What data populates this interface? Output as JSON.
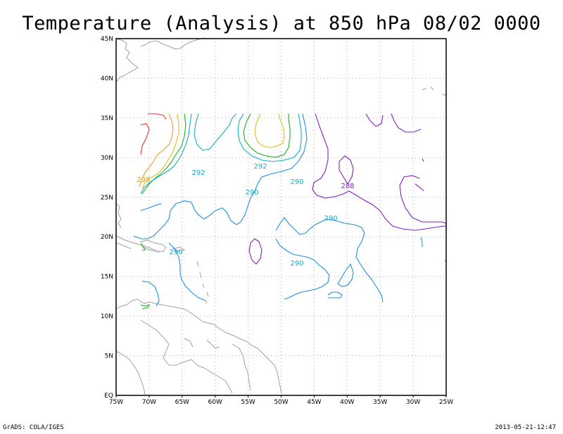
{
  "title": "Temperature (Analysis) at 850 hPa 08/02 0000",
  "footer": {
    "left": "GrADS: COLA/IGES",
    "right": "2013-05-21-12:47"
  },
  "map": {
    "lon_range": [
      -75,
      -25
    ],
    "lat_range": [
      0,
      45
    ],
    "x_ticks": [
      "75W",
      "70W",
      "65W",
      "60W",
      "55W",
      "50W",
      "45W",
      "40W",
      "35W",
      "30W",
      "25W"
    ],
    "y_ticks": [
      "EQ",
      "5N",
      "10N",
      "15N",
      "20N",
      "25N",
      "30N",
      "35N",
      "40N",
      "45N"
    ],
    "grid": "dotted",
    "contour_labels": [
      {
        "text": "298",
        "color": "#d8a020"
      },
      {
        "text": "292",
        "color": "#10b0c8"
      },
      {
        "text": "292",
        "color": "#10b0c8"
      },
      {
        "text": "290",
        "color": "#10b0c8"
      },
      {
        "text": "290",
        "color": "#10b0c8"
      },
      {
        "text": "288",
        "color": "#8020c0"
      },
      {
        "text": "290",
        "color": "#10b0c8"
      },
      {
        "text": "290",
        "color": "#10b0c8"
      },
      {
        "text": "290",
        "color": "#10b0c8"
      }
    ],
    "colors": {
      "red": "#e83030",
      "orange": "#e8a030",
      "yellow": "#d8c020",
      "green": "#20b020",
      "cyan": "#10b0c8",
      "blue": "#2080e0",
      "purple": "#8020c0",
      "coast": "#a0a0a0"
    }
  }
}
